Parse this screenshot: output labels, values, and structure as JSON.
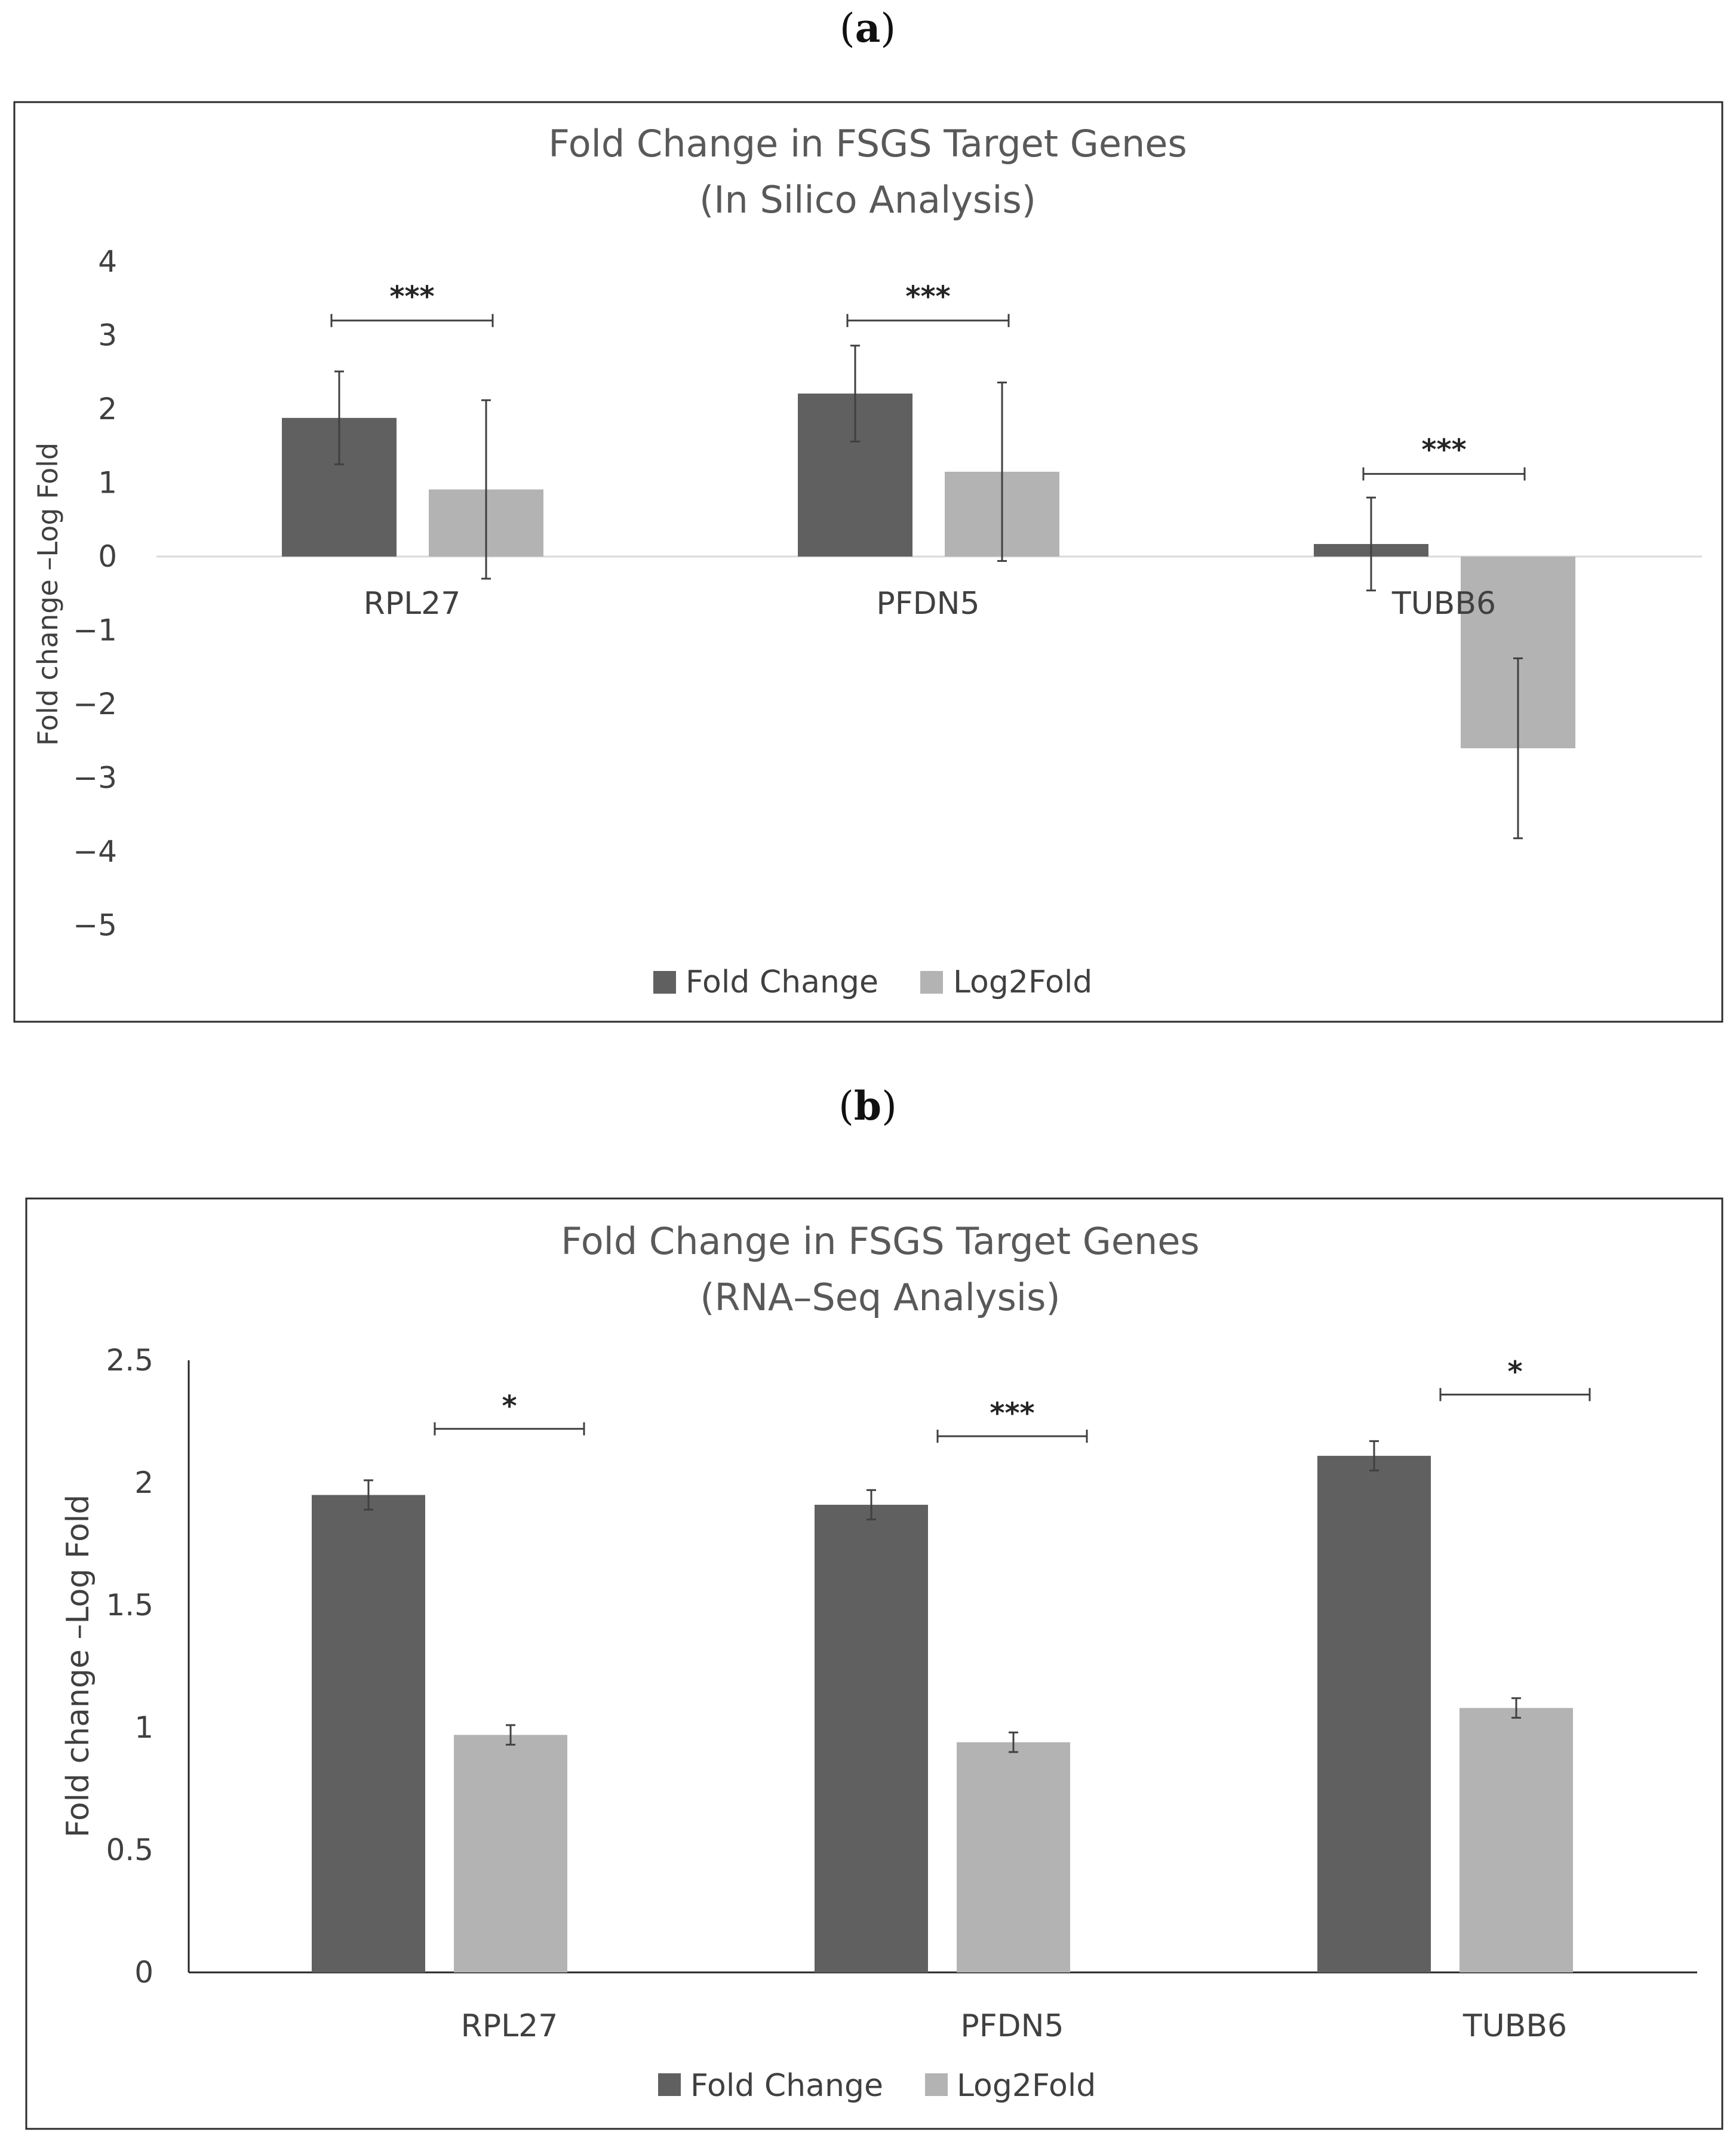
{
  "panel_a": {
    "label_open": "(",
    "label_letter": "a",
    "label_close": ")"
  },
  "panel_b": {
    "label_open": "(",
    "label_letter": "b",
    "label_close": ")"
  },
  "colors": {
    "fold_change": "#606060",
    "log2fold": "#b3b3b3"
  },
  "chart_data": [
    {
      "type": "bar",
      "title": "Fold Change in FSGS Target Genes",
      "subtitle": "(In Silico Analysis)",
      "xlabel": "",
      "ylabel": "Fold change –Log Fold",
      "categories": [
        "RPL27",
        "PFDN5",
        "TUBB6"
      ],
      "ylim": [
        -5,
        4
      ],
      "yticks": [
        4,
        3,
        2,
        1,
        0,
        -1,
        -2,
        -3,
        -4,
        -5
      ],
      "ytick_labels": [
        "4",
        "3",
        "2",
        "1",
        "0",
        "−1",
        "−2",
        "−3",
        "−4",
        "−5"
      ],
      "series": [
        {
          "name": "Fold Change",
          "values": [
            1.88,
            2.21,
            0.17
          ],
          "errors": [
            0.63,
            0.65,
            0.63
          ]
        },
        {
          "name": "Log2Fold",
          "values": [
            0.91,
            1.15,
            -2.6
          ],
          "errors": [
            1.21,
            1.21,
            1.22
          ]
        }
      ],
      "significance": [
        {
          "category": "RPL27",
          "label": "***",
          "y": 3.2
        },
        {
          "category": "PFDN5",
          "label": "***",
          "y": 3.2
        },
        {
          "category": "TUBB6",
          "label": "***",
          "y": 1.12
        }
      ],
      "legend": "bottom-center",
      "grid": false
    },
    {
      "type": "bar",
      "title": "Fold Change in FSGS Target Genes",
      "subtitle": "(RNA–Seq Analysis)",
      "xlabel": "",
      "ylabel": "Fold change –Log Fold",
      "categories": [
        "RPL27",
        "PFDN5",
        "TUBB6"
      ],
      "ylim": [
        0,
        2.5
      ],
      "yticks": [
        2.5,
        2,
        1.5,
        1,
        0.5,
        0
      ],
      "ytick_labels": [
        "2.5",
        "2",
        "1.5",
        "1",
        "0.5",
        "0"
      ],
      "series": [
        {
          "name": "Fold Change",
          "values": [
            1.95,
            1.91,
            2.11
          ],
          "errors": [
            0.06,
            0.06,
            0.06
          ]
        },
        {
          "name": "Log2Fold",
          "values": [
            0.97,
            0.94,
            1.08
          ],
          "errors": [
            0.04,
            0.04,
            0.04
          ]
        }
      ],
      "significance": [
        {
          "category": "RPL27",
          "label": "*",
          "y": 2.22
        },
        {
          "category": "PFDN5",
          "label": "***",
          "y": 2.19
        },
        {
          "category": "TUBB6",
          "label": "*",
          "y": 2.36
        }
      ],
      "legend": "bottom-center",
      "grid": false
    }
  ]
}
